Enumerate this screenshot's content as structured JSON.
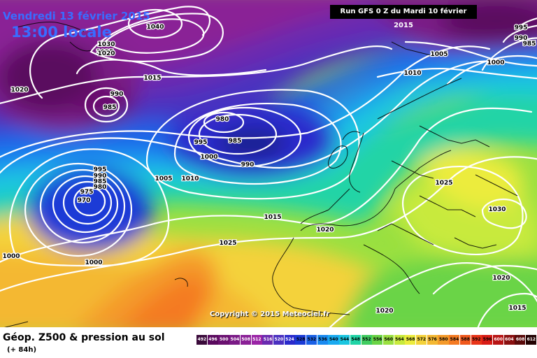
{
  "header": {
    "date": "Vendredi 13 février 2015",
    "time": "13:00 locale",
    "run": "Run GFS 0 Z du Mardi 10 février 2015"
  },
  "copyright": "Copyright © 2015 Meteociel.fr",
  "legend": {
    "title": "Géop. Z500 & pression au sol",
    "subtitle": "(+ 84h)",
    "ticks": [
      "492",
      "496",
      "500",
      "504",
      "508",
      "512",
      "516",
      "520",
      "524",
      "528",
      "532",
      "536",
      "540",
      "544",
      "548",
      "552",
      "556",
      "560",
      "564",
      "568",
      "572",
      "576",
      "580",
      "584",
      "588",
      "592",
      "596",
      "600",
      "604",
      "608",
      "612"
    ],
    "colors": [
      "#3a0a3a",
      "#5a0a5e",
      "#6a1070",
      "#7a1a86",
      "#8a2096",
      "#9a24a6",
      "#6a2ab0",
      "#4a30c0",
      "#2a2acc",
      "#1a3ad6",
      "#1a60e6",
      "#1a8af0",
      "#1aaaf0",
      "#1ac6e0",
      "#20d4a6",
      "#40cc60",
      "#6ad446",
      "#9ae040",
      "#c8ea3c",
      "#ecec3c",
      "#f4d23a",
      "#f4b832",
      "#f49a2a",
      "#f47a22",
      "#f0581c",
      "#e83418",
      "#d81c16",
      "#b81414",
      "#8a1010",
      "#5a0a0a",
      "#220202"
    ]
  },
  "isobars": [
    "1040",
    "1030",
    "1025",
    "1020",
    "1020",
    "1015",
    "990",
    "985",
    "980",
    "985",
    "995",
    "1000",
    "990",
    "995",
    "990",
    "985",
    "980",
    "975",
    "970",
    "1005",
    "1010",
    "1015",
    "1020",
    "1025",
    "1000",
    "1000",
    "1010",
    "1005",
    "1000",
    "995",
    "990",
    "985",
    "1025",
    "1030",
    "1020",
    "1015",
    "1020"
  ]
}
